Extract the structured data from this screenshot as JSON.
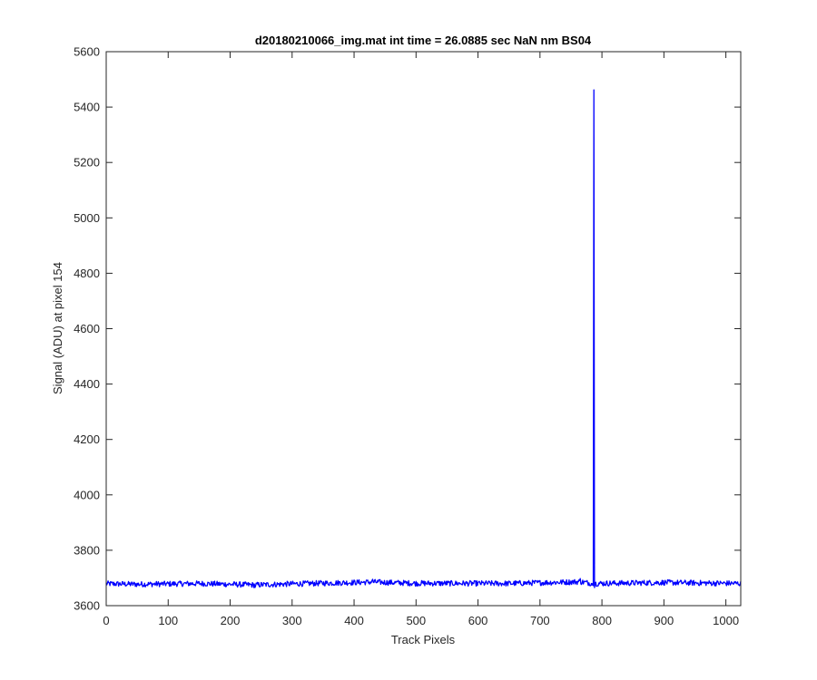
{
  "chart_data": {
    "type": "line",
    "title": "d20180210066_img.mat int time = 26.0885 sec  NaN nm BS04",
    "xlabel": "Track Pixels",
    "ylabel": "Signal (ADU) at pixel 154",
    "xlim": [
      0,
      1024
    ],
    "ylim": [
      3600,
      5600
    ],
    "xticks": [
      0,
      100,
      200,
      300,
      400,
      500,
      600,
      700,
      800,
      900,
      1000
    ],
    "yticks": [
      3600,
      3800,
      4000,
      4200,
      4400,
      4600,
      4800,
      5000,
      5200,
      5400,
      5600
    ],
    "grid": false,
    "series": [
      {
        "color": "#0000ff",
        "baseline": 3680,
        "noise_amplitude": 10,
        "x_range": [
          0,
          1024
        ],
        "points": [
          {
            "x": 0,
            "y": 3678
          },
          {
            "x": 50,
            "y": 3672
          },
          {
            "x": 150,
            "y": 3680
          },
          {
            "x": 240,
            "y": 3665
          },
          {
            "x": 300,
            "y": 3676
          },
          {
            "x": 430,
            "y": 3695
          },
          {
            "x": 500,
            "y": 3682
          },
          {
            "x": 650,
            "y": 3680
          },
          {
            "x": 765,
            "y": 3698
          },
          {
            "x": 785,
            "y": 3680
          },
          {
            "x": 786,
            "y": 3672
          },
          {
            "x": 787,
            "y": 5462
          },
          {
            "x": 788,
            "y": 3665
          },
          {
            "x": 789,
            "y": 3680
          },
          {
            "x": 900,
            "y": 3690
          },
          {
            "x": 1024,
            "y": 3680
          }
        ]
      }
    ]
  }
}
